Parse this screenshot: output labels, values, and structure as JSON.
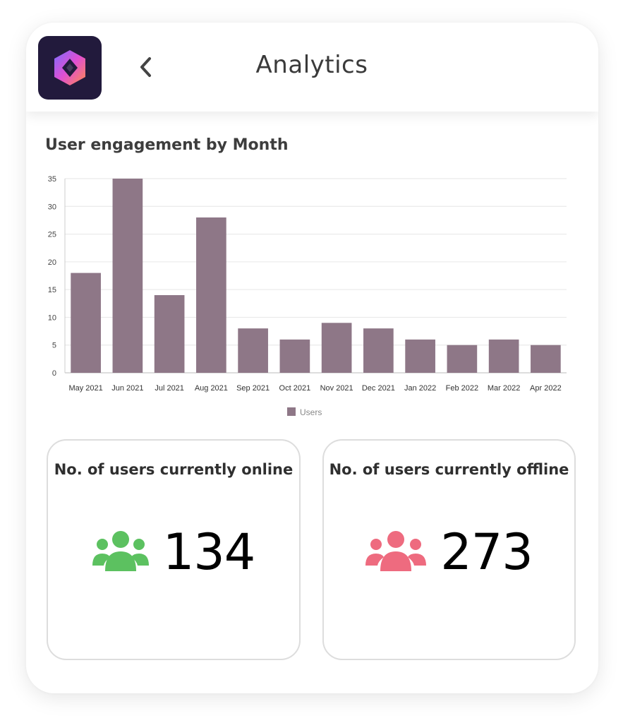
{
  "header": {
    "title": "Analytics",
    "logo_icon": "app-logo-icon",
    "back_icon": "chevron-left-icon"
  },
  "chart_title": "User engagement by Month",
  "chart_data": {
    "type": "bar",
    "title": "User engagement by Month",
    "categories": [
      "May 2021",
      "Jun 2021",
      "Jul 2021",
      "Aug 2021",
      "Sep 2021",
      "Oct 2021",
      "Nov 2021",
      "Dec 2021",
      "Jan 2022",
      "Feb 2022",
      "Mar 2022",
      "Apr 2022"
    ],
    "series": [
      {
        "name": "Users",
        "values": [
          18,
          35,
          14,
          28,
          8,
          6,
          9,
          8,
          6,
          5,
          6,
          5
        ]
      }
    ],
    "ylim": [
      0,
      35
    ],
    "yticks": [
      0,
      5,
      10,
      15,
      20,
      25,
      30,
      35
    ],
    "grid": true,
    "legend": "bottom",
    "color": "#8e7787"
  },
  "stats": {
    "online": {
      "label": "No. of users currently online",
      "value": "134",
      "icon": "users-group-icon",
      "color": "#5cc160"
    },
    "offline": {
      "label": "No. of users currently offline",
      "value": "273",
      "icon": "users-group-icon",
      "color": "#ee6b7f"
    }
  }
}
